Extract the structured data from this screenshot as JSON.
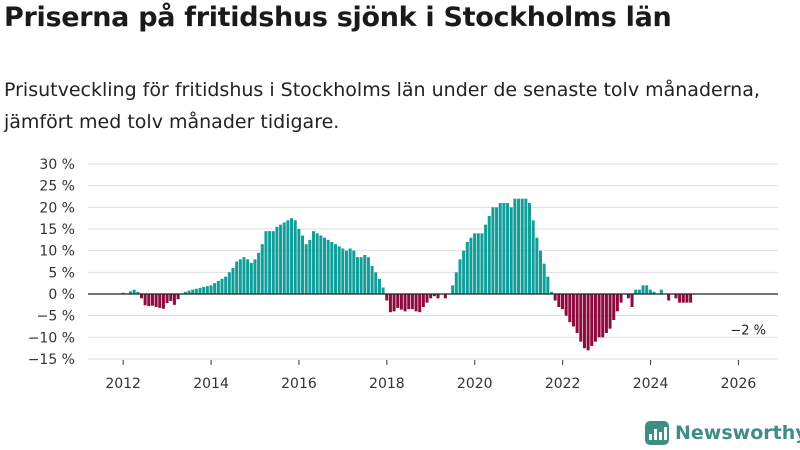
{
  "header": {
    "title": "Priserna på fritidshus sjönk i Stockholms län",
    "subtitle": "Prisutveckling för fritidshus i Stockholms län under de senaste tolv månaderna, jämfört med tolv månader tidigare."
  },
  "brand": {
    "name": "Newsworthy",
    "icon": "newsworthy-logo-icon"
  },
  "colors": {
    "positive": "#0f9e9a",
    "negative": "#8e0a3c",
    "grid": "#dedede",
    "axis": "#333333"
  },
  "chart_data": {
    "type": "bar",
    "title": "Priserna på fritidshus sjönk i Stockholms län",
    "xlabel": "",
    "ylabel": "",
    "x_start": 2012.0,
    "x_step": 0.0833,
    "xlim": [
      2011.2,
      2026.9
    ],
    "ylim": [
      -15,
      30
    ],
    "yticks": [
      30,
      25,
      20,
      15,
      10,
      5,
      0,
      -5,
      -10,
      -15
    ],
    "ytick_labels": [
      "30 %",
      "25 %",
      "20 %",
      "15 %",
      "10 %",
      "5 %",
      "0 %",
      "−5 %",
      "−10 %",
      "−15 %"
    ],
    "xticks": [
      2012,
      2014,
      2016,
      2018,
      2020,
      2022,
      2024,
      2026
    ],
    "xtick_labels": [
      "2012",
      "2014",
      "2016",
      "2018",
      "2020",
      "2022",
      "2024",
      "2026"
    ],
    "grid": true,
    "values": [
      0.3,
      0,
      0.6,
      1,
      0.5,
      -1,
      -2.6,
      -2.8,
      -2.7,
      -3,
      -3.2,
      -3.4,
      -2.1,
      -1.6,
      -2.5,
      -1.2,
      0,
      0.5,
      0.8,
      1,
      1.2,
      1.4,
      1.6,
      1.8,
      2,
      2.5,
      3,
      3.5,
      4,
      5,
      6,
      7.5,
      8,
      8.5,
      8,
      7.2,
      8,
      9.5,
      11.5,
      14.5,
      14.5,
      14.5,
      15.5,
      16,
      16.5,
      17,
      17.5,
      17,
      15,
      13.5,
      11.5,
      12.5,
      14.5,
      14,
      13.5,
      13,
      12.5,
      12,
      11.5,
      11,
      10.5,
      10,
      10.5,
      10,
      8.5,
      8.5,
      9,
      8.5,
      6.5,
      5,
      3.5,
      1.5,
      -1.5,
      -4.2,
      -4,
      -3.2,
      -3.6,
      -4,
      -3.5,
      -3.5,
      -4,
      -4.2,
      -3,
      -2,
      -1,
      -0.5,
      -1,
      0,
      -1,
      0,
      2,
      5,
      8,
      10,
      12,
      13,
      14,
      14,
      14,
      16,
      18,
      20,
      20,
      21,
      21,
      21,
      20,
      22,
      22,
      22,
      22,
      21,
      17,
      13,
      10,
      7,
      4,
      0.5,
      -1.5,
      -3,
      -3.5,
      -5,
      -6.5,
      -7.5,
      -9,
      -11,
      -12.5,
      -13,
      -12,
      -11,
      -10,
      -10,
      -9,
      -8,
      -6,
      -4,
      -2,
      0,
      -1,
      -3,
      1,
      1,
      2,
      2,
      1,
      0.5,
      0,
      1,
      0,
      -1.5,
      0,
      -1,
      -2,
      -2,
      -2,
      -2
    ],
    "end_label": "−2 %"
  }
}
